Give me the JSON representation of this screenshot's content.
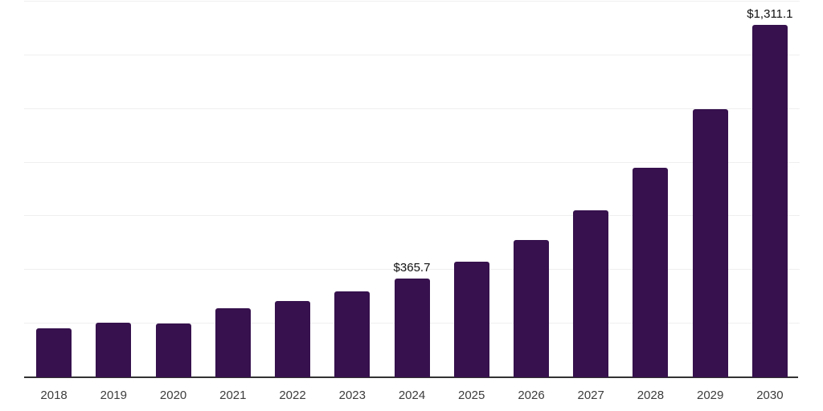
{
  "chart_data": {
    "type": "bar",
    "title": "",
    "xlabel": "",
    "ylabel": "",
    "categories": [
      "2018",
      "2019",
      "2020",
      "2021",
      "2022",
      "2023",
      "2024",
      "2025",
      "2026",
      "2027",
      "2028",
      "2029",
      "2030"
    ],
    "values": [
      181,
      200,
      198,
      254,
      280,
      316,
      365.7,
      427,
      510,
      620,
      777,
      997,
      1311.1
    ],
    "bar_labels": [
      "",
      "",
      "",
      "",
      "",
      "",
      "$365.7",
      "",
      "",
      "",
      "",
      "",
      "$1,311.1"
    ],
    "ylim": [
      0,
      1400
    ],
    "grid_step": 200,
    "grid": true,
    "legend_position": "none",
    "bar_color": "#36114d",
    "axis_color": "#333333",
    "gridline_color": "#efefef",
    "tick_label_color": "#3c3c3c",
    "value_label_color": "#111111"
  }
}
